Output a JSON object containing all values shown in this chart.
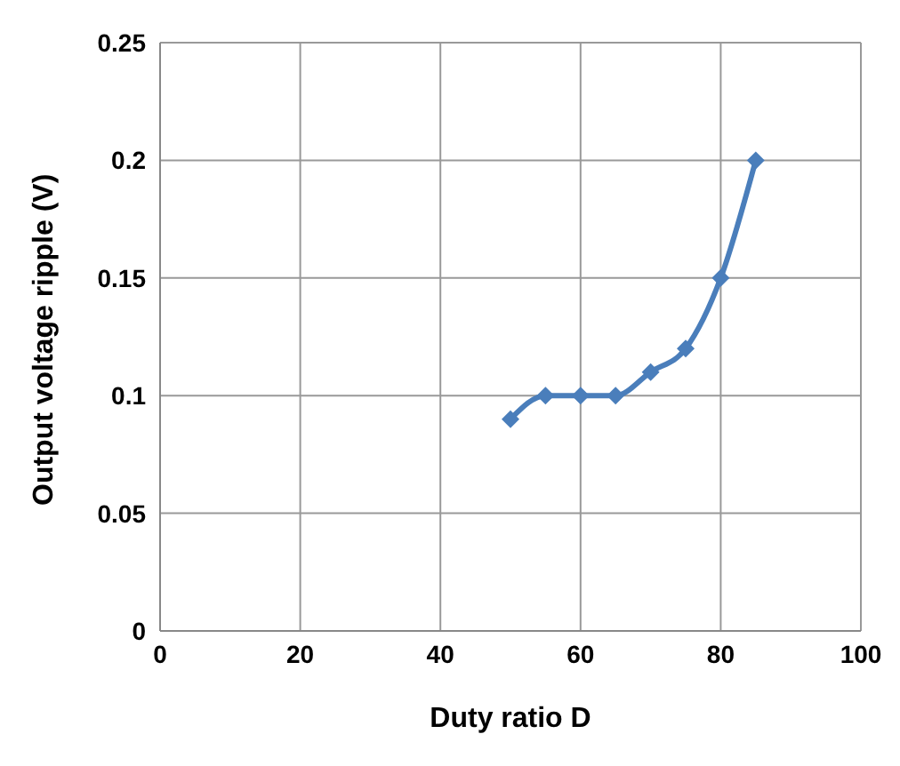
{
  "chart_data": {
    "type": "line",
    "xlabel": "Duty ratio D",
    "ylabel": "Output voltage ripple (V)",
    "x": [
      50,
      55,
      60,
      65,
      70,
      75,
      80,
      85
    ],
    "series": [
      {
        "color": "#4a7ebb",
        "values": [
          0.09,
          0.1,
          0.1,
          0.1,
          0.11,
          0.12,
          0.15,
          0.2
        ]
      }
    ],
    "xlim": [
      0,
      100
    ],
    "xticks": [
      0,
      20,
      40,
      60,
      80,
      100
    ],
    "ylim": [
      0,
      0.25
    ],
    "yticks": [
      0,
      0.05,
      0.1,
      0.15,
      0.2,
      0.25
    ],
    "grid": true,
    "marker": "diamond",
    "line_style": "solid"
  }
}
